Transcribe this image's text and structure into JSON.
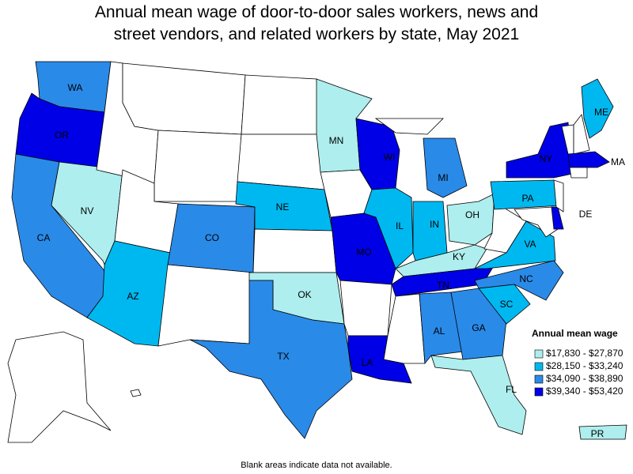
{
  "title_lines": [
    "Annual mean wage of door-to-door sales workers, news and",
    "street vendors, and related workers by state, May 2021"
  ],
  "note": "Blank areas indicate data not available.",
  "legend": {
    "title": "Annual mean wage",
    "items": [
      {
        "label": "$17,830 - $27,870",
        "color": "#aeeeee",
        "states": [
          "MN",
          "NV",
          "OK",
          "OH",
          "KY",
          "FL",
          "PR"
        ]
      },
      {
        "label": "$28,150 - $33,240",
        "color": "#00b8f0",
        "states": [
          "NE",
          "AZ",
          "IL",
          "IN",
          "SC",
          "VA",
          "PA",
          "ME"
        ]
      },
      {
        "label": "$34,090 - $38,890",
        "color": "#2a8ae8",
        "states": [
          "WA",
          "CA",
          "CO",
          "TX",
          "MI",
          "AL",
          "GA",
          "NC"
        ]
      },
      {
        "label": "$39,340 - $53,420",
        "color": "#0000e6",
        "states": [
          "OR",
          "WI",
          "MO",
          "TN",
          "LA",
          "NY",
          "MA",
          "DE"
        ]
      }
    ]
  }
}
